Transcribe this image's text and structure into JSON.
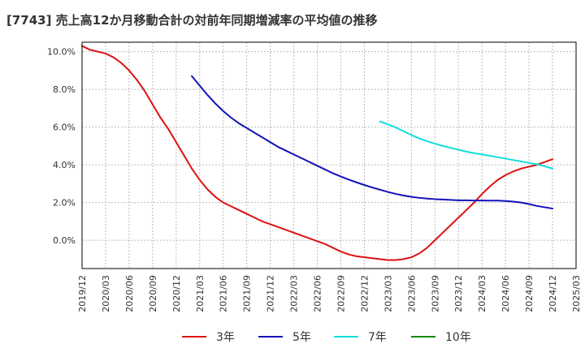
{
  "chart_data": {
    "type": "line",
    "title": "[7743]  売上高12か月移動合計の対前年同期増減率の平均値の推移",
    "xlabel": "",
    "ylabel": "",
    "x_ticks": [
      "2019/12",
      "2020/03",
      "2020/06",
      "2020/09",
      "2020/12",
      "2021/03",
      "2021/06",
      "2021/09",
      "2021/12",
      "2022/03",
      "2022/06",
      "2022/09",
      "2022/12",
      "2023/03",
      "2023/06",
      "2023/09",
      "2023/12",
      "2024/03",
      "2024/06",
      "2024/09",
      "2024/12",
      "2025/03"
    ],
    "y_ticks": [
      "10.0%",
      "8.0%",
      "6.0%",
      "4.0%",
      "2.0%",
      "0.0%"
    ],
    "ylim": [
      -1.5,
      10.5
    ],
    "grid": true,
    "legend_position": "bottom",
    "series": [
      {
        "name": "3年",
        "color": "#dd1111",
        "x": [
          "2019/12",
          "2020/01",
          "2020/02",
          "2020/03",
          "2020/04",
          "2020/05",
          "2020/06",
          "2020/07",
          "2020/08",
          "2020/09",
          "2020/10",
          "2020/11",
          "2020/12",
          "2021/01",
          "2021/02",
          "2021/03",
          "2021/04",
          "2021/05",
          "2021/06",
          "2021/07",
          "2021/08",
          "2021/09",
          "2021/10",
          "2021/11",
          "2021/12",
          "2022/01",
          "2022/02",
          "2022/03",
          "2022/04",
          "2022/05",
          "2022/06",
          "2022/07",
          "2022/08",
          "2022/09",
          "2022/10",
          "2022/11",
          "2022/12",
          "2023/01",
          "2023/02",
          "2023/03",
          "2023/04",
          "2023/05",
          "2023/06",
          "2023/07",
          "2023/08",
          "2023/09",
          "2023/10",
          "2023/11",
          "2023/12",
          "2024/01",
          "2024/02",
          "2024/03",
          "2024/04",
          "2024/05",
          "2024/06",
          "2024/07",
          "2024/08",
          "2024/09",
          "2024/10",
          "2024/11",
          "2024/12"
        ],
        "values": [
          10.3,
          10.1,
          10.0,
          9.9,
          9.7,
          9.4,
          9.0,
          8.5,
          7.9,
          7.2,
          6.5,
          5.9,
          5.2,
          4.5,
          3.8,
          3.2,
          2.7,
          2.3,
          2.0,
          1.8,
          1.6,
          1.4,
          1.2,
          1.0,
          0.85,
          0.7,
          0.55,
          0.4,
          0.25,
          0.1,
          -0.05,
          -0.2,
          -0.4,
          -0.6,
          -0.75,
          -0.85,
          -0.9,
          -0.95,
          -1.0,
          -1.05,
          -1.05,
          -1.0,
          -0.9,
          -0.7,
          -0.4,
          0.0,
          0.4,
          0.8,
          1.2,
          1.6,
          2.0,
          2.45,
          2.85,
          3.2,
          3.45,
          3.65,
          3.8,
          3.9,
          4.0,
          4.15,
          4.3
        ]
      },
      {
        "name": "5年",
        "color": "#1111bb",
        "x": [
          "2021/02",
          "2021/03",
          "2021/04",
          "2021/05",
          "2021/06",
          "2021/07",
          "2021/08",
          "2021/09",
          "2021/10",
          "2021/11",
          "2021/12",
          "2022/01",
          "2022/02",
          "2022/03",
          "2022/04",
          "2022/05",
          "2022/06",
          "2022/07",
          "2022/08",
          "2022/09",
          "2022/10",
          "2022/11",
          "2022/12",
          "2023/01",
          "2023/02",
          "2023/03",
          "2023/04",
          "2023/05",
          "2023/06",
          "2023/07",
          "2023/08",
          "2023/09",
          "2023/10",
          "2023/11",
          "2023/12",
          "2024/01",
          "2024/02",
          "2024/03",
          "2024/04",
          "2024/05",
          "2024/06",
          "2024/07",
          "2024/08",
          "2024/09",
          "2024/10",
          "2024/11",
          "2024/12"
        ],
        "values": [
          8.7,
          8.2,
          7.7,
          7.25,
          6.85,
          6.5,
          6.2,
          5.95,
          5.7,
          5.45,
          5.2,
          4.95,
          4.75,
          4.55,
          4.35,
          4.15,
          3.95,
          3.75,
          3.55,
          3.38,
          3.22,
          3.07,
          2.93,
          2.8,
          2.68,
          2.56,
          2.46,
          2.37,
          2.3,
          2.25,
          2.21,
          2.18,
          2.16,
          2.14,
          2.12,
          2.12,
          2.11,
          2.11,
          2.1,
          2.1,
          2.08,
          2.05,
          2.0,
          1.92,
          1.82,
          1.75,
          1.68
        ]
      },
      {
        "name": "7年",
        "color": "#11dddd",
        "x": [
          "2023/02",
          "2023/03",
          "2023/04",
          "2023/05",
          "2023/06",
          "2023/07",
          "2023/08",
          "2023/09",
          "2023/10",
          "2023/11",
          "2023/12",
          "2024/01",
          "2024/02",
          "2024/03",
          "2024/04",
          "2024/05",
          "2024/06",
          "2024/07",
          "2024/08",
          "2024/09",
          "2024/10",
          "2024/11",
          "2024/12"
        ],
        "values": [
          6.3,
          6.15,
          5.98,
          5.78,
          5.58,
          5.4,
          5.25,
          5.12,
          5.0,
          4.9,
          4.8,
          4.7,
          4.62,
          4.55,
          4.48,
          4.4,
          4.33,
          4.25,
          4.18,
          4.1,
          4.03,
          3.92,
          3.8
        ]
      },
      {
        "name": "10年",
        "color": "#118811",
        "x": [],
        "values": []
      }
    ]
  }
}
